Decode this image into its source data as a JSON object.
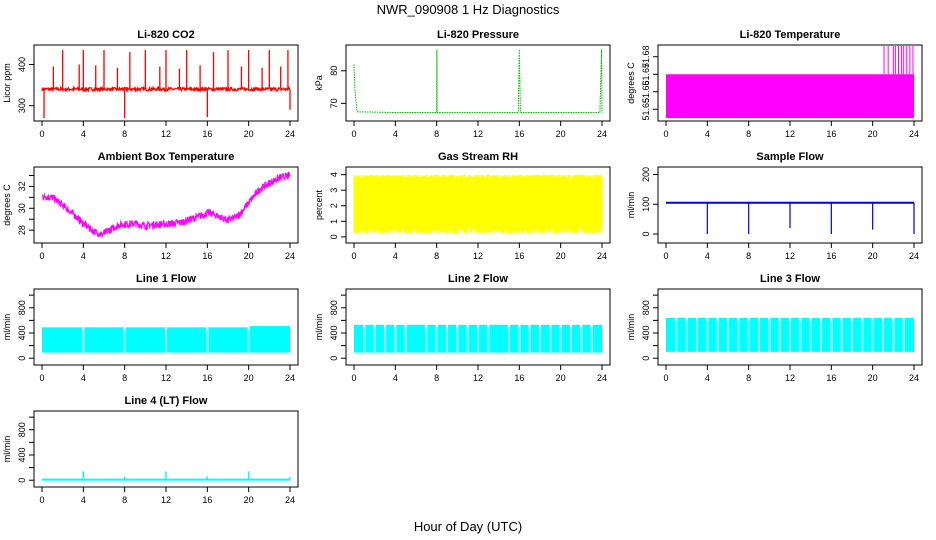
{
  "page": {
    "title": "NWR_090908  1 Hz Diagnostics",
    "xlabel": "Hour of Day (UTC)"
  },
  "chart_data": [
    {
      "type": "line",
      "title": "Li-820 CO2",
      "ylabel": "Licor ppm",
      "color": "#ff0000",
      "xlim": [
        0,
        24
      ],
      "ylim": [
        270,
        440
      ],
      "yticks": [
        300,
        400
      ],
      "ytick_labels": [
        "300",
        "400"
      ],
      "xticks": [
        0,
        4,
        8,
        12,
        16,
        20,
        24
      ],
      "series": [
        {
          "baseline": 340,
          "noise": 4,
          "spikes": [
            {
              "x": 0.2,
              "y": 270
            },
            {
              "x": 1.1,
              "y": 395
            },
            {
              "x": 2.0,
              "y": 435
            },
            {
              "x": 3.6,
              "y": 400
            },
            {
              "x": 4.0,
              "y": 435
            },
            {
              "x": 5.2,
              "y": 398
            },
            {
              "x": 6.0,
              "y": 435
            },
            {
              "x": 7.3,
              "y": 392
            },
            {
              "x": 8.0,
              "y": 270
            },
            {
              "x": 8.5,
              "y": 430
            },
            {
              "x": 10.0,
              "y": 435
            },
            {
              "x": 11.4,
              "y": 395
            },
            {
              "x": 12.0,
              "y": 435
            },
            {
              "x": 13.3,
              "y": 390
            },
            {
              "x": 14.0,
              "y": 435
            },
            {
              "x": 15.3,
              "y": 398
            },
            {
              "x": 16.0,
              "y": 272
            },
            {
              "x": 16.6,
              "y": 430
            },
            {
              "x": 18.0,
              "y": 435
            },
            {
              "x": 19.3,
              "y": 395
            },
            {
              "x": 20.0,
              "y": 435
            },
            {
              "x": 21.3,
              "y": 392
            },
            {
              "x": 22.0,
              "y": 435
            },
            {
              "x": 23.1,
              "y": 395
            },
            {
              "x": 23.8,
              "y": 435
            },
            {
              "x": 24.0,
              "y": 290
            }
          ]
        }
      ]
    },
    {
      "type": "line",
      "title": "Li-820 Pressure",
      "ylabel": "kPa",
      "color": "#00bb00",
      "xlim": [
        0,
        24
      ],
      "ylim": [
        65.5,
        87
      ],
      "yticks": [
        70,
        80
      ],
      "ytick_labels": [
        "70",
        "80"
      ],
      "xticks": [
        0,
        4,
        8,
        12,
        16,
        20,
        24
      ],
      "series": [
        {
          "points": [
            [
              0,
              82
            ],
            [
              0.1,
              74
            ],
            [
              0.3,
              67.4
            ],
            [
              4,
              67.2
            ],
            [
              8,
              67.2
            ],
            [
              8.02,
              86.5
            ],
            [
              8.05,
              67.2
            ],
            [
              15.9,
              67.2
            ],
            [
              16.0,
              86.5
            ],
            [
              16.1,
              67.2
            ],
            [
              23.8,
              67.2
            ],
            [
              23.95,
              86.5
            ],
            [
              24,
              67
            ]
          ]
        }
      ]
    },
    {
      "type": "area",
      "title": "Li-820 Temperature",
      "ylabel": "degrees C",
      "color": "#ff00ff",
      "xlim": [
        0,
        24
      ],
      "ylim": [
        51.645,
        51.685
      ],
      "yticks": [
        51.65,
        51.66,
        51.67,
        51.68
      ],
      "ytick_labels": [
        "51.65",
        "51.66",
        "51.67",
        "51.68"
      ],
      "xticks": [
        0,
        4,
        8,
        12,
        16,
        20,
        24
      ],
      "series": [
        {
          "band": {
            "x0": 0,
            "x1": 24,
            "y_low": 51.645,
            "y_high": 51.67
          },
          "spikes_x": [
            21.1,
            21.5,
            22.0,
            22.2,
            22.5,
            22.8,
            23.0,
            23.3,
            23.6,
            23.9
          ]
        }
      ]
    },
    {
      "type": "line",
      "title": "Ambient Box Temperature",
      "ylabel": "degrees C",
      "color": "#ff00ff",
      "xlim": [
        0,
        24
      ],
      "ylim": [
        27.1,
        33.5
      ],
      "yticks": [
        28,
        29,
        30,
        31,
        32,
        33
      ],
      "ytick_labels": [
        "28",
        "",
        "30",
        "",
        "32",
        ""
      ],
      "xticks": [
        0,
        4,
        8,
        12,
        16,
        20,
        24
      ],
      "series": [
        {
          "noise": 0.35,
          "points": [
            [
              0,
              31.1
            ],
            [
              1,
              31.0
            ],
            [
              2,
              30.3
            ],
            [
              3,
              29.5
            ],
            [
              4,
              28.6
            ],
            [
              5,
              27.9
            ],
            [
              5.8,
              27.6
            ],
            [
              6.5,
              28.0
            ],
            [
              7.5,
              28.5
            ],
            [
              9,
              28.6
            ],
            [
              10,
              28.4
            ],
            [
              11,
              28.5
            ],
            [
              12.5,
              28.6
            ],
            [
              13.5,
              28.7
            ],
            [
              15,
              29.2
            ],
            [
              16.2,
              29.6
            ],
            [
              17,
              29.3
            ],
            [
              18,
              28.9
            ],
            [
              19,
              29.3
            ],
            [
              20,
              30.5
            ],
            [
              21,
              31.7
            ],
            [
              22,
              32.3
            ],
            [
              23,
              32.8
            ],
            [
              24,
              33.0
            ]
          ]
        }
      ]
    },
    {
      "type": "area",
      "title": "Gas Stream RH",
      "ylabel": "percent",
      "color": "#ffff00",
      "xlim": [
        0,
        24
      ],
      "ylim": [
        -0.2,
        4.3
      ],
      "yticks": [
        0,
        1,
        2,
        3,
        4
      ],
      "ytick_labels": [
        "0",
        "1",
        "2",
        "3",
        "4"
      ],
      "xticks": [
        0,
        4,
        8,
        12,
        16,
        20,
        24
      ],
      "series": [
        {
          "band": {
            "x0": 0,
            "x1": 24,
            "y_low": 0.2,
            "y_high": 4.0
          },
          "dense_core": {
            "y_low": 0.9,
            "y_high": 3.6
          }
        }
      ]
    },
    {
      "type": "line",
      "title": "Sample Flow",
      "ylabel": "ml/min",
      "color": "#0000dd",
      "xlim": [
        0,
        24
      ],
      "ylim": [
        -20,
        215
      ],
      "yticks": [
        0,
        100,
        200
      ],
      "ytick_labels": [
        "0",
        "100",
        "200"
      ],
      "xticks": [
        0,
        4,
        8,
        12,
        16,
        20,
        24
      ],
      "series": [
        {
          "baseline": 105,
          "dips": [
            {
              "x": 4.0,
              "y": 0
            },
            {
              "x": 8.0,
              "y": 0
            },
            {
              "x": 12.0,
              "y": 20
            },
            {
              "x": 16.0,
              "y": 0
            },
            {
              "x": 20.0,
              "y": 15
            },
            {
              "x": 24.0,
              "y": 0
            }
          ]
        }
      ]
    },
    {
      "type": "area",
      "title": "Line 1 Flow",
      "ylabel": "ml/min",
      "color": "#00ffff",
      "xlim": [
        0,
        24
      ],
      "ylim": [
        -60,
        1050
      ],
      "yticks": [
        0,
        200,
        400,
        600,
        800,
        1000
      ],
      "ytick_labels": [
        "0",
        "",
        "400",
        "",
        "800",
        ""
      ],
      "xticks": [
        0,
        4,
        8,
        12,
        16,
        20,
        24
      ],
      "series": [
        {
          "band": {
            "x0": 0,
            "x1": 24,
            "y_low": 90,
            "y_high": 490
          },
          "gaps": [
            4.0,
            8.0,
            12.0,
            16.0,
            20.0
          ],
          "top_right": 510
        }
      ]
    },
    {
      "type": "area",
      "title": "Line 2 Flow",
      "ylabel": "ml/min",
      "color": "#00ffff",
      "xlim": [
        0,
        24
      ],
      "ylim": [
        -60,
        1050
      ],
      "yticks": [
        0,
        200,
        400,
        600,
        800,
        1000
      ],
      "ytick_labels": [
        "0",
        "",
        "400",
        "",
        "800",
        ""
      ],
      "xticks": [
        0,
        4,
        8,
        12,
        16,
        20,
        24
      ],
      "series": [
        {
          "band": {
            "x0": 0,
            "x1": 24,
            "y_low": 90,
            "y_high": 530
          },
          "gaps": [
            1.0,
            2.0,
            3.0,
            4.0,
            5.0,
            7.0,
            8.0,
            9.0,
            10.0,
            11.0,
            12.0,
            13.0,
            15.0,
            16.0,
            17.0,
            18.0,
            19.0,
            20.0,
            21.0,
            22.0,
            23.0
          ],
          "top_right": 530
        }
      ]
    },
    {
      "type": "area",
      "title": "Line 3 Flow",
      "ylabel": "ml/min",
      "color": "#00ffff",
      "xlim": [
        0,
        24
      ],
      "ylim": [
        -60,
        1050
      ],
      "yticks": [
        0,
        200,
        400,
        600,
        800,
        1000
      ],
      "ytick_labels": [
        "0",
        "",
        "400",
        "",
        "800",
        ""
      ],
      "xticks": [
        0,
        4,
        8,
        12,
        16,
        20,
        24
      ],
      "series": [
        {
          "band": {
            "x0": 0,
            "x1": 24,
            "y_low": 100,
            "y_high": 640
          },
          "gaps": [
            1.0,
            2.0,
            3.0,
            4.0,
            5.0,
            6.0,
            7.0,
            8.0,
            9.0,
            10.0,
            11.0,
            12.0,
            13.0,
            14.0,
            15.0,
            16.0,
            17.0,
            18.0,
            19.0,
            20.0,
            21.0,
            22.0,
            23.0
          ],
          "top_right": 640
        }
      ]
    },
    {
      "type": "line",
      "title": "Line 4 (LT) Flow",
      "ylabel": "ml/min",
      "color": "#00ffff",
      "xlim": [
        0,
        24
      ],
      "ylim": [
        -60,
        1050
      ],
      "yticks": [
        0,
        200,
        400,
        600,
        800,
        1000
      ],
      "ytick_labels": [
        "0",
        "",
        "400",
        "",
        "800",
        ""
      ],
      "xticks": [
        0,
        4,
        8,
        12,
        16,
        20,
        24
      ],
      "series": [
        {
          "baseline": 10,
          "spikes": [
            {
              "x": 4.0,
              "y": 140
            },
            {
              "x": 8.0,
              "y": 60
            },
            {
              "x": 12.0,
              "y": 140
            },
            {
              "x": 16.0,
              "y": 60
            },
            {
              "x": 20.0,
              "y": 140
            },
            {
              "x": 24.0,
              "y": 50
            }
          ]
        }
      ]
    }
  ]
}
